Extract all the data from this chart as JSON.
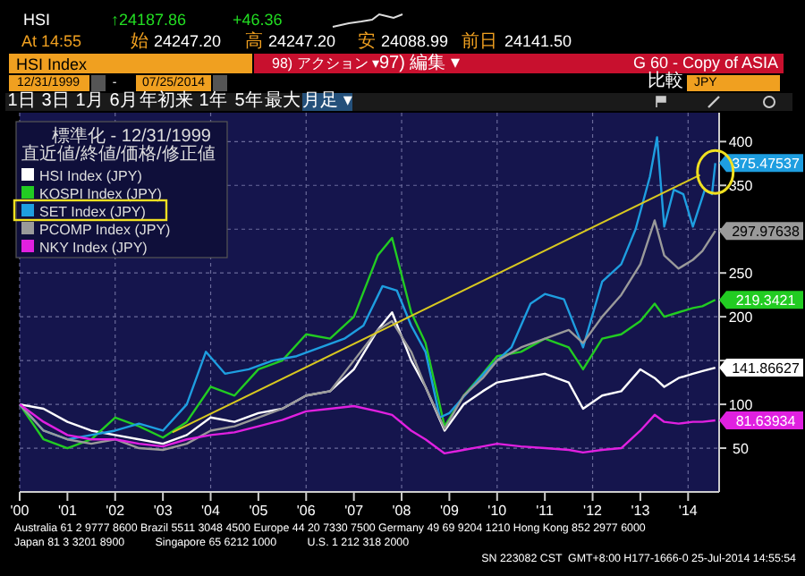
{
  "chart_data": {
    "type": "line",
    "title": "HSI Index",
    "x": [
      2000,
      2000.5,
      2001,
      2001.5,
      2002,
      2002.5,
      2003,
      2003.5,
      2004,
      2004.5,
      2005,
      2005.5,
      2006,
      2006.5,
      2007,
      2007.5,
      2007.8,
      2008.2,
      2008.5,
      2008.9,
      2009.3,
      2009.7,
      2010,
      2010.5,
      2011,
      2011.5,
      2011.8,
      2012.2,
      2012.6,
      2013,
      2013.3,
      2013.5,
      2013.8,
      2014.1,
      2014.3,
      2014.57
    ],
    "series": [
      {
        "name": "HSI Index (JPY)",
        "color": "#ffffff",
        "values": [
          100,
          95,
          80,
          70,
          65,
          60,
          55,
          65,
          85,
          80,
          90,
          95,
          110,
          115,
          140,
          185,
          205,
          150,
          120,
          70,
          100,
          115,
          125,
          130,
          135,
          125,
          95,
          110,
          115,
          140,
          130,
          120,
          130,
          135,
          138,
          141.86627
        ],
        "value_labels": [
          null,
          null,
          null,
          null,
          null,
          null,
          null,
          null,
          null,
          null,
          null,
          null,
          null,
          null,
          null,
          null,
          null,
          null,
          null,
          null,
          null,
          null,
          null,
          null,
          null,
          null,
          null,
          null,
          null,
          null,
          null,
          null,
          null,
          null,
          null,
          "141.86627"
        ]
      },
      {
        "name": "KOSPI Index (JPY)",
        "color": "#22cc22",
        "values": [
          100,
          60,
          50,
          60,
          85,
          75,
          62,
          80,
          120,
          110,
          140,
          150,
          180,
          175,
          200,
          270,
          290,
          205,
          170,
          75,
          110,
          135,
          155,
          160,
          175,
          165,
          140,
          175,
          180,
          195,
          215,
          200,
          205,
          210,
          212,
          219.3421
        ],
        "value_labels": [
          null,
          null,
          null,
          null,
          null,
          null,
          null,
          null,
          null,
          null,
          null,
          null,
          null,
          null,
          null,
          null,
          null,
          null,
          null,
          null,
          null,
          null,
          null,
          null,
          null,
          null,
          null,
          null,
          null,
          null,
          null,
          null,
          null,
          null,
          null,
          "219.3421"
        ]
      },
      {
        "name": "SET Index (JPY)",
        "color": "#1e9ee0",
        "x": [
          2000,
          2000.5,
          2001,
          2001.5,
          2002,
          2002.5,
          2003,
          2003.5,
          2003.9,
          2004.3,
          2004.8,
          2005.3,
          2005.8,
          2006.3,
          2006.8,
          2007.2,
          2007.6,
          2007.9,
          2008.2,
          2008.5,
          2008.8,
          2009,
          2009.4,
          2009.8,
          2010.3,
          2010.7,
          2011,
          2011.4,
          2011.8,
          2012.2,
          2012.6,
          2012.9,
          2013.2,
          2013.35,
          2013.5,
          2013.7,
          2013.9,
          2014.1,
          2014.35,
          2014.5,
          2014.57
        ],
        "values": [
          100,
          70,
          60,
          65,
          70,
          78,
          70,
          100,
          160,
          135,
          140,
          150,
          155,
          165,
          175,
          190,
          235,
          230,
          190,
          160,
          85,
          90,
          115,
          140,
          165,
          215,
          226,
          220,
          165,
          240,
          260,
          300,
          360,
          405,
          303,
          345,
          340,
          303,
          345,
          340,
          375.47537
        ],
        "value_labels": [
          null,
          null,
          null,
          null,
          null,
          null,
          null,
          null,
          null,
          null,
          null,
          null,
          null,
          null,
          null,
          null,
          null,
          null,
          null,
          null,
          null,
          null,
          null,
          null,
          null,
          null,
          null,
          null,
          null,
          null,
          null,
          null,
          null,
          null,
          null,
          null,
          null,
          null,
          null,
          null,
          "375.47537"
        ]
      },
      {
        "name": "PCOMP Index (JPY)",
        "color": "#9a9a9a",
        "values": [
          100,
          70,
          60,
          55,
          60,
          50,
          48,
          55,
          70,
          75,
          85,
          95,
          110,
          115,
          150,
          185,
          195,
          160,
          120,
          72,
          110,
          130,
          150,
          165,
          175,
          185,
          170,
          200,
          225,
          260,
          310,
          270,
          255,
          265,
          275,
          297.97638
        ],
        "value_labels": [
          null,
          null,
          null,
          null,
          null,
          null,
          null,
          null,
          null,
          null,
          null,
          null,
          null,
          null,
          null,
          null,
          null,
          null,
          null,
          null,
          null,
          null,
          null,
          null,
          null,
          null,
          null,
          null,
          null,
          null,
          null,
          null,
          null,
          null,
          null,
          "297.97638"
        ]
      },
      {
        "name": "NKY Index (JPY)",
        "color": "#e020e0",
        "values": [
          100,
          80,
          65,
          60,
          60,
          55,
          52,
          60,
          65,
          68,
          75,
          82,
          92,
          95,
          98,
          92,
          88,
          70,
          60,
          44,
          48,
          52,
          55,
          52,
          50,
          48,
          45,
          48,
          50,
          70,
          88,
          80,
          78,
          80,
          80,
          81.63934
        ],
        "value_labels": [
          null,
          null,
          null,
          null,
          null,
          null,
          null,
          null,
          null,
          null,
          null,
          null,
          null,
          null,
          null,
          null,
          null,
          null,
          null,
          null,
          null,
          null,
          null,
          null,
          null,
          null,
          null,
          null,
          null,
          null,
          null,
          null,
          null,
          null,
          null,
          "81.63934"
        ]
      },
      {
        "type": "line",
        "color": "#d8c820",
        "x": [
          2003.2,
          2014.25
        ],
        "values": [
          68,
          362
        ]
      }
    ],
    "legend_title": "標準化 - 12/31/1999\n直近値/終値/価格/修正値",
    "legend": "top left",
    "xlim": [
      2000,
      2014.65
    ],
    "xticks": [
      {
        "value": 2000,
        "label": "'00"
      },
      {
        "value": 2001,
        "label": "'01"
      },
      {
        "value": 2002,
        "label": "'02"
      },
      {
        "value": 2003,
        "label": "'03"
      },
      {
        "value": 2004,
        "label": "'04"
      },
      {
        "value": 2005,
        "label": "'05"
      },
      {
        "value": 2006,
        "label": "'06"
      },
      {
        "value": 2007,
        "label": "'07"
      },
      {
        "value": 2008,
        "label": "'08"
      },
      {
        "value": 2009,
        "label": "'09"
      },
      {
        "value": 2010,
        "label": "'10"
      },
      {
        "value": 2011,
        "label": "'11"
      },
      {
        "value": 2012,
        "label": "'12"
      },
      {
        "value": 2013,
        "label": "'13"
      },
      {
        "value": 2014,
        "label": "'14"
      }
    ],
    "ylim": [
      0,
      433
    ],
    "yticks": [
      50,
      100,
      {
        "value": 150,
        "label": null
      },
      200,
      250,
      {
        "value": 300,
        "label": null
      },
      350,
      400
    ],
    "grid": true,
    "annotations": [
      "HSI",
      "↑24187.86",
      "+46.36",
      "At 14:55",
      "始",
      "24247.20",
      "高",
      "24247.20",
      "安",
      "24088.99",
      "前日",
      "24141.50",
      "98) アクション ▾",
      "97) 編集 ▾",
      "G 60 - Copy of ASIA",
      "12/31/1999",
      "-",
      "07/25/2014",
      "比較",
      "JPY",
      "1日",
      "3日",
      "1月",
      "6月",
      "年初来",
      "1年",
      "5年",
      "最大",
      "月足 ▾",
      "Australia 61 2 9777 8600 Brazil 5511 3048 4500 Europe 44 20 7330 7500 Germany 49 69 9204 1210 Hong Kong 852 2977 6000",
      "Japan 81 3 3201 8900          Singapore 65 6212 1000          U.S. 1 212 318 2000",
      "SN 223082 CST  GMT+8:00 H177-1666-0 25-Jul-2014 14:55:54"
    ]
  }
}
